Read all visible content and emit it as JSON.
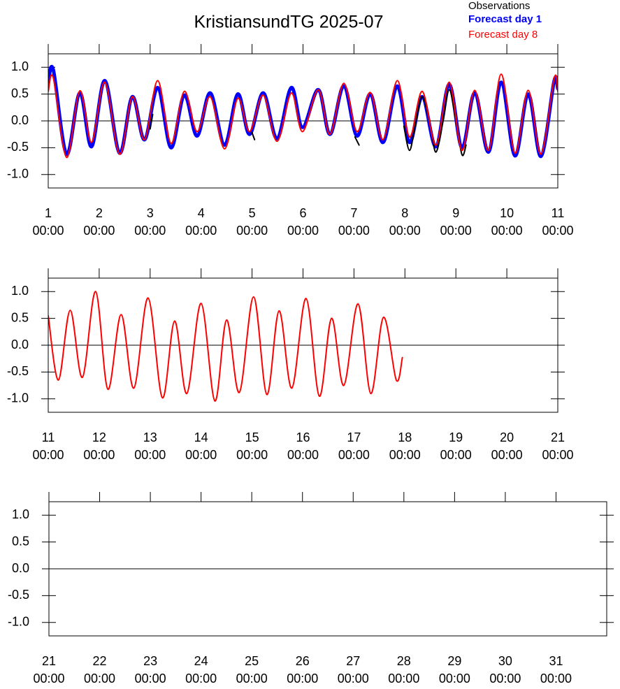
{
  "chart_data": [
    {
      "type": "line",
      "title": "KristiansundTG 2025-07",
      "xlim": [
        1,
        11
      ],
      "ylim": [
        -1.25,
        1.25
      ],
      "hline": 0,
      "xticks": [
        {
          "value": 1,
          "label": "1",
          "time": "00:00"
        },
        {
          "value": 2,
          "label": "2",
          "time": "00:00"
        },
        {
          "value": 3,
          "label": "3",
          "time": "00:00"
        },
        {
          "value": 4,
          "label": "4",
          "time": "00:00"
        },
        {
          "value": 5,
          "label": "5",
          "time": "00:00"
        },
        {
          "value": 6,
          "label": "6",
          "time": "00:00"
        },
        {
          "value": 7,
          "label": "7",
          "time": "00:00"
        },
        {
          "value": 8,
          "label": "8",
          "time": "00:00"
        },
        {
          "value": 9,
          "label": "9",
          "time": "00:00"
        },
        {
          "value": 10,
          "label": "10",
          "time": "00:00"
        },
        {
          "value": 11,
          "label": "11",
          "time": "00:00"
        }
      ],
      "yticks": [
        {
          "value": 1,
          "label": "1.0"
        },
        {
          "value": 0.5,
          "label": "0.5"
        },
        {
          "value": 0,
          "label": "0.0"
        },
        {
          "value": -0.5,
          "label": "-0.5"
        },
        {
          "value": -1,
          "label": "-1.0"
        }
      ],
      "series": [
        {
          "name": "Observations",
          "color": "#000000",
          "x": [
            3.0,
            3.05,
            null,
            5.0,
            5.05,
            null,
            7.02,
            7.1,
            null,
            7.98,
            8.09,
            8.2,
            8.34,
            8.5,
            8.61,
            8.75,
            8.87,
            9.0,
            9.12,
            9.2
          ],
          "values": [
            -0.15,
            0.12,
            null,
            -0.22,
            -0.35,
            null,
            -0.3,
            -0.45,
            null,
            -0.1,
            -0.55,
            -0.1,
            0.45,
            -0.1,
            -0.58,
            0.0,
            0.58,
            0.0,
            -0.63,
            -0.45
          ]
        },
        {
          "name": "Forecast day 1",
          "color": "#0000ff",
          "x": [
            1.0,
            1.1,
            1.36,
            1.62,
            1.85,
            2.11,
            2.4,
            2.65,
            2.89,
            3.15,
            3.41,
            3.67,
            3.92,
            4.18,
            4.46,
            4.72,
            4.95,
            5.22,
            5.49,
            5.77,
            5.99,
            6.3,
            6.53,
            6.8,
            7.06,
            7.32,
            7.57,
            7.85,
            8.09,
            8.34,
            8.61,
            8.87,
            9.12,
            9.37,
            9.64,
            9.89,
            10.16,
            10.42,
            10.67,
            10.93,
            11.0
          ],
          "values": [
            0.7,
            0.95,
            -0.62,
            0.52,
            -0.48,
            0.75,
            -0.6,
            0.45,
            -0.35,
            0.62,
            -0.5,
            0.48,
            -0.28,
            0.52,
            -0.45,
            0.5,
            -0.25,
            0.52,
            -0.33,
            0.62,
            -0.12,
            0.58,
            -0.25,
            0.65,
            -0.28,
            0.5,
            -0.4,
            0.65,
            -0.4,
            0.45,
            -0.48,
            0.68,
            -0.5,
            0.52,
            -0.58,
            0.72,
            -0.65,
            0.5,
            -0.66,
            0.75,
            0.6
          ]
        },
        {
          "name": "Forecast day 8",
          "color": "#ff0000",
          "x": [
            1.0,
            1.1,
            1.36,
            1.62,
            1.85,
            2.11,
            2.4,
            2.65,
            2.89,
            3.15,
            3.41,
            3.67,
            3.92,
            4.18,
            4.46,
            4.72,
            4.95,
            5.22,
            5.49,
            5.77,
            5.99,
            6.3,
            6.53,
            6.8,
            7.06,
            7.32,
            7.57,
            7.85,
            8.09,
            8.34,
            8.61,
            8.87,
            9.12,
            9.37,
            9.64,
            9.89,
            10.16,
            10.42,
            10.67,
            10.93,
            11.0
          ],
          "values": [
            0.55,
            0.8,
            -0.68,
            0.56,
            -0.4,
            0.72,
            -0.62,
            0.45,
            -0.35,
            0.75,
            -0.42,
            0.55,
            -0.2,
            0.45,
            -0.52,
            0.42,
            -0.2,
            0.48,
            -0.38,
            0.52,
            -0.2,
            0.58,
            -0.25,
            0.7,
            -0.2,
            0.53,
            -0.35,
            0.75,
            -0.3,
            0.55,
            -0.45,
            0.72,
            -0.55,
            0.57,
            -0.55,
            0.87,
            -0.6,
            0.57,
            -0.62,
            0.8,
            0.55
          ]
        }
      ]
    },
    {
      "type": "line",
      "xlim": [
        11,
        21
      ],
      "ylim": [
        -1.25,
        1.25
      ],
      "hline": 0,
      "xticks": [
        {
          "value": 11,
          "label": "11",
          "time": "00:00"
        },
        {
          "value": 12,
          "label": "12",
          "time": "00:00"
        },
        {
          "value": 13,
          "label": "13",
          "time": "00:00"
        },
        {
          "value": 14,
          "label": "14",
          "time": "00:00"
        },
        {
          "value": 15,
          "label": "15",
          "time": "00:00"
        },
        {
          "value": 16,
          "label": "16",
          "time": "00:00"
        },
        {
          "value": 17,
          "label": "17",
          "time": "00:00"
        },
        {
          "value": 18,
          "label": "18",
          "time": "00:00"
        },
        {
          "value": 19,
          "label": "19",
          "time": "00:00"
        },
        {
          "value": 20,
          "label": "20",
          "time": "00:00"
        },
        {
          "value": 21,
          "label": "21",
          "time": "00:00"
        }
      ],
      "yticks": [
        {
          "value": 1,
          "label": "1.0"
        },
        {
          "value": 0.5,
          "label": "0.5"
        },
        {
          "value": 0,
          "label": "0.0"
        },
        {
          "value": -0.5,
          "label": "-0.5"
        },
        {
          "value": -1,
          "label": "-1.0"
        }
      ],
      "series": [
        {
          "name": "Forecast day 8",
          "color": "#ff0000",
          "x": [
            11.0,
            11.2,
            11.43,
            11.67,
            11.93,
            12.17,
            12.43,
            12.68,
            12.96,
            13.24,
            13.48,
            13.72,
            14.0,
            14.27,
            14.5,
            14.75,
            15.03,
            15.29,
            15.53,
            15.78,
            16.06,
            16.32,
            16.56,
            16.8,
            17.08,
            17.33,
            17.58,
            17.83,
            17.95
          ],
          "values": [
            0.55,
            -0.65,
            0.65,
            -0.6,
            1.0,
            -0.82,
            0.57,
            -0.8,
            0.88,
            -0.98,
            0.45,
            -0.9,
            0.78,
            -1.04,
            0.47,
            -0.88,
            0.9,
            -0.92,
            0.64,
            -0.8,
            0.87,
            -0.95,
            0.5,
            -0.75,
            0.77,
            -0.9,
            0.52,
            -0.65,
            -0.23
          ]
        }
      ]
    },
    {
      "type": "line",
      "xlim": [
        21,
        32
      ],
      "ylim": [
        -1.25,
        1.25
      ],
      "hline": 0,
      "xticks": [
        {
          "value": 21,
          "label": "21",
          "time": "00:00"
        },
        {
          "value": 22,
          "label": "22",
          "time": "00:00"
        },
        {
          "value": 23,
          "label": "23",
          "time": "00:00"
        },
        {
          "value": 24,
          "label": "24",
          "time": "00:00"
        },
        {
          "value": 25,
          "label": "25",
          "time": "00:00"
        },
        {
          "value": 26,
          "label": "26",
          "time": "00:00"
        },
        {
          "value": 27,
          "label": "27",
          "time": "00:00"
        },
        {
          "value": 28,
          "label": "28",
          "time": "00:00"
        },
        {
          "value": 29,
          "label": "29",
          "time": "00:00"
        },
        {
          "value": 30,
          "label": "30",
          "time": "00:00"
        },
        {
          "value": 31,
          "label": "31",
          "time": "00:00"
        }
      ],
      "yticks": [
        {
          "value": 1,
          "label": "1.0"
        },
        {
          "value": 0.5,
          "label": "0.5"
        },
        {
          "value": 0,
          "label": "0.0"
        },
        {
          "value": -0.5,
          "label": "-0.5"
        },
        {
          "value": -1,
          "label": "-1.0"
        }
      ],
      "series": []
    }
  ]
}
